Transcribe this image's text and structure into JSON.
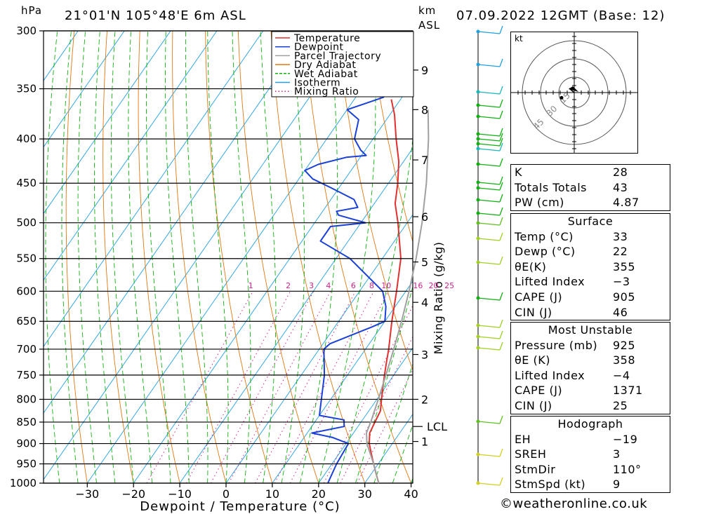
{
  "header": {
    "pressure_unit": "hPa",
    "location": "21°01'N 105°48'E 6m ASL",
    "height_unit_km": "km",
    "height_unit_asl": "ASL",
    "datetime": "07.09.2022 12GMT (Base: 12)"
  },
  "chart_data": {
    "type": "line",
    "subtype": "skew-T log-P sounding",
    "xlabel": "Dewpoint / Temperature (°C)",
    "ylabel_left": "hPa",
    "ylabel_right": "Mixing Ratio (g/kg)",
    "pressure_levels": [
      300,
      350,
      400,
      450,
      500,
      550,
      600,
      650,
      700,
      750,
      800,
      850,
      900,
      950,
      1000
    ],
    "x_ticks": [
      -30,
      -20,
      -10,
      0,
      10,
      20,
      30,
      40
    ],
    "height_ticks_km": [
      {
        "label": "9",
        "p": 333
      },
      {
        "label": "8",
        "p": 370
      },
      {
        "label": "7",
        "p": 423
      },
      {
        "label": "6",
        "p": 492
      },
      {
        "label": "5",
        "p": 555
      },
      {
        "label": "4",
        "p": 618
      },
      {
        "label": "3",
        "p": 710
      },
      {
        "label": "2",
        "p": 800
      },
      {
        "label": "1",
        "p": 895
      }
    ],
    "lcl": {
      "label": "LCL",
      "p": 860
    },
    "mixing_ratio_labels": [
      "1",
      "2",
      "3",
      "4",
      "6",
      "8",
      "10",
      "16",
      "20",
      "25"
    ],
    "mixing_ratio_values": [
      1,
      2,
      3,
      4,
      6,
      8,
      10,
      16,
      20,
      25
    ],
    "legend": [
      "Temperature",
      "Dewpoint",
      "Parcel Trajectory",
      "Dry Adiabat",
      "Wet Adiabat",
      "Isotherm",
      "Mixing Ratio"
    ],
    "colors": {
      "temperature": "#e03030",
      "dewpoint": "#1a40d8",
      "parcel": "#a0a0a0",
      "dry_adiabat": "#e07810",
      "wet_adiabat": "#10b010",
      "isotherm": "#20a0e0",
      "mixing_ratio": "#d0208a"
    },
    "series": [
      {
        "name": "Temperature",
        "points": [
          [
            1000,
            33
          ],
          [
            975,
            31
          ],
          [
            950,
            29
          ],
          [
            925,
            27
          ],
          [
            900,
            25
          ],
          [
            875,
            23.5
          ],
          [
            850,
            23
          ],
          [
            825,
            22.5
          ],
          [
            800,
            21
          ],
          [
            775,
            19.5
          ],
          [
            750,
            18
          ],
          [
            725,
            16.5
          ],
          [
            700,
            15
          ],
          [
            650,
            11.5
          ],
          [
            600,
            8
          ],
          [
            550,
            4
          ],
          [
            500,
            -2
          ],
          [
            475,
            -5.5
          ],
          [
            450,
            -8
          ],
          [
            425,
            -11
          ],
          [
            400,
            -15
          ],
          [
            375,
            -19
          ],
          [
            360,
            -22
          ]
        ]
      },
      {
        "name": "Dewpoint",
        "points": [
          [
            1000,
            22
          ],
          [
            950,
            21
          ],
          [
            900,
            20.5
          ],
          [
            885,
            16
          ],
          [
            875,
            11
          ],
          [
            860,
            17
          ],
          [
            845,
            16
          ],
          [
            835,
            10
          ],
          [
            800,
            8
          ],
          [
            750,
            5
          ],
          [
            700,
            1
          ],
          [
            690,
            1.5
          ],
          [
            660,
            8
          ],
          [
            650,
            10
          ],
          [
            625,
            8
          ],
          [
            600,
            5
          ],
          [
            550,
            -7
          ],
          [
            525,
            -16
          ],
          [
            505,
            -16
          ],
          [
            500,
            -9
          ],
          [
            490,
            -16
          ],
          [
            485,
            -17
          ],
          [
            480,
            -13
          ],
          [
            470,
            -15
          ],
          [
            455,
            -22
          ],
          [
            445,
            -27
          ],
          [
            435,
            -30
          ],
          [
            428,
            -28
          ],
          [
            420,
            -23
          ],
          [
            418,
            -19
          ],
          [
            412,
            -21
          ],
          [
            400,
            -24
          ],
          [
            380,
            -26
          ],
          [
            370,
            -30
          ],
          [
            358,
            -24
          ],
          [
            350,
            -26
          ],
          [
            345,
            -41
          ],
          [
            340,
            -37
          ],
          [
            336,
            -32
          ],
          [
            332,
            -23
          ],
          [
            320,
            -23
          ],
          [
            305,
            -28
          ],
          [
            300,
            -30
          ]
        ]
      },
      {
        "name": "Parcel Trajectory",
        "points": [
          [
            1000,
            33
          ],
          [
            950,
            29
          ],
          [
            900,
            24.5
          ],
          [
            875,
            22.8
          ],
          [
            850,
            22.1
          ],
          [
            800,
            20.3
          ],
          [
            750,
            18.3
          ],
          [
            700,
            16.1
          ],
          [
            650,
            13.6
          ],
          [
            600,
            10.7
          ],
          [
            550,
            7.3
          ],
          [
            500,
            3.2
          ],
          [
            450,
            -1.8
          ],
          [
            400,
            -8
          ],
          [
            370,
            -12.5
          ]
        ]
      }
    ]
  },
  "hodograph": {
    "unit": "kt",
    "ring_labels": [
      "15",
      "30",
      "45"
    ],
    "hodo_points": [
      [
        -0.3,
        0.04
      ],
      [
        -0.12,
        -0.1
      ]
    ]
  },
  "indices": [
    {
      "label": "K",
      "value": "28"
    },
    {
      "label": "Totals Totals",
      "value": "43"
    },
    {
      "label": "PW (cm)",
      "value": "4.87"
    }
  ],
  "surface": {
    "title": "Surface",
    "rows": [
      {
        "label": "Temp (°C)",
        "value": "33"
      },
      {
        "label": "Dewp (°C)",
        "value": "22"
      },
      {
        "label": "θE(K)",
        "value": "355"
      },
      {
        "label": "Lifted Index",
        "value": "−3"
      },
      {
        "label": "CAPE (J)",
        "value": "905"
      },
      {
        "label": "CIN (J)",
        "value": "46"
      }
    ]
  },
  "most_unstable": {
    "title": "Most Unstable",
    "rows": [
      {
        "label": "Pressure (mb)",
        "value": "925"
      },
      {
        "label": "θE (K)",
        "value": "358"
      },
      {
        "label": "Lifted Index",
        "value": "−4"
      },
      {
        "label": "CAPE (J)",
        "value": "1371"
      },
      {
        "label": "CIN (J)",
        "value": "25"
      }
    ]
  },
  "hodograph_table": {
    "title": "Hodograph",
    "rows": [
      {
        "label": "EH",
        "value": "−19"
      },
      {
        "label": "SREH",
        "value": "3"
      },
      {
        "label": "StmDir",
        "value": "110°"
      },
      {
        "label": "StmSpd (kt)",
        "value": "9"
      }
    ]
  },
  "footer": {
    "copyright": "©weatheronline.co.uk"
  }
}
